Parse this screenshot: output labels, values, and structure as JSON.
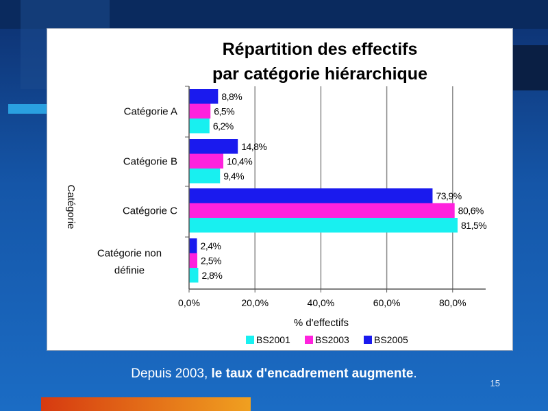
{
  "chart_data": {
    "type": "bar",
    "orientation": "horizontal",
    "title_line1": "Répartition des effectifs",
    "title_line2": "par catégorie hiérarchique",
    "xlabel": "% d'effectifs",
    "ylabel": "Catégorie",
    "xlim": [
      0,
      90
    ],
    "x_ticks": [
      "0,0%",
      "20,0%",
      "40,0%",
      "60,0%",
      "80,0%"
    ],
    "grid": true,
    "legend_position": "bottom",
    "categories": [
      {
        "line1": "Catégorie A",
        "line2": ""
      },
      {
        "line1": "Catégorie B",
        "line2": ""
      },
      {
        "line1": "Catégorie C",
        "line2": ""
      },
      {
        "line1": "Catégorie non",
        "line2": "définie"
      }
    ],
    "series": [
      {
        "name": "BS2005",
        "color": "#1a1aee",
        "values": [
          8.8,
          14.8,
          73.9,
          2.4
        ],
        "labels": [
          "8,8%",
          "14,8%",
          "73,9%",
          "2,4%"
        ]
      },
      {
        "name": "BS2003",
        "color": "#ff22dd",
        "values": [
          6.5,
          10.4,
          80.6,
          2.5
        ],
        "labels": [
          "6,5%",
          "10,4%",
          "80,6%",
          "2,5%"
        ]
      },
      {
        "name": "BS2001",
        "color": "#18f0f0",
        "values": [
          6.2,
          9.4,
          81.5,
          2.8
        ],
        "labels": [
          "6,2%",
          "9,4%",
          "81,5%",
          "2,8%"
        ]
      }
    ],
    "legend": [
      {
        "name": "BS2001",
        "color": "#18f0f0"
      },
      {
        "name": "BS2003",
        "color": "#ff22dd"
      },
      {
        "name": "BS2005",
        "color": "#1a1aee"
      }
    ]
  },
  "caption": {
    "prefix": "Depuis 2003, ",
    "bold": "le taux d'encadrement augmente",
    "suffix": "."
  },
  "slide_number": "15"
}
